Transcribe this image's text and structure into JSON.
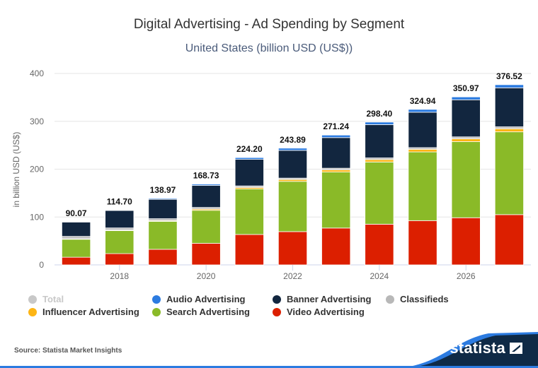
{
  "title": "Digital Advertising - Ad Spending by Segment",
  "subtitle": "United States (billion USD (US$))",
  "source": "Source: Statista Market Insights",
  "brand": "statista",
  "chart_data": {
    "type": "bar",
    "stacked": true,
    "title": "Digital Advertising - Ad Spending by Segment",
    "subtitle": "United States (billion USD (US$))",
    "xlabel": "",
    "ylabel": "in billion USD (US$)",
    "ylim": [
      0,
      400
    ],
    "yticks": [
      0,
      100,
      200,
      300,
      400
    ],
    "grid": true,
    "legend_position": "bottom",
    "categories": [
      "2017",
      "2018",
      "2019",
      "2020",
      "2021",
      "2022",
      "2023",
      "2024",
      "2025",
      "2026",
      "2027"
    ],
    "xtick_labels": [
      "",
      "2018",
      "",
      "2020",
      "",
      "2022",
      "",
      "2024",
      "",
      "2026",
      ""
    ],
    "totals": [
      90.07,
      114.7,
      138.97,
      168.73,
      224.2,
      243.89,
      271.24,
      298.4,
      324.94,
      350.97,
      376.52
    ],
    "total_labels": [
      "90.07",
      "114.70",
      "138.97",
      "168.73",
      "224.20",
      "243.89",
      "271.24",
      "298.40",
      "324.94",
      "350.97",
      "376.52"
    ],
    "series": [
      {
        "name": "Video Advertising",
        "color": "#dc1f00",
        "values": [
          16.0,
          23.5,
          32.5,
          45.0,
          63.5,
          69.5,
          77.0,
          85.0,
          92.5,
          98.5,
          105.0
        ]
      },
      {
        "name": "Search Advertising",
        "color": "#8aba28",
        "values": [
          37.5,
          48.0,
          58.5,
          69.0,
          95.0,
          105.0,
          117.0,
          130.0,
          143.5,
          159.0,
          173.0
        ]
      },
      {
        "name": "Influencer Advertising",
        "color": "#fdb515",
        "values": [
          1.0,
          1.2,
          1.5,
          2.5,
          3.0,
          3.8,
          4.5,
          5.0,
          5.5,
          6.0,
          6.5
        ]
      },
      {
        "name": "Classifieds",
        "color": "#c0c0c0",
        "values": [
          5.0,
          4.5,
          4.0,
          3.5,
          3.5,
          3.0,
          3.5,
          3.5,
          3.5,
          4.0,
          4.0
        ]
      },
      {
        "name": "Banner Advertising",
        "color": "#12263f",
        "values": [
          30.0,
          36.5,
          40.5,
          46.0,
          55.5,
          58.0,
          64.0,
          69.5,
          74.0,
          77.5,
          81.5
        ]
      },
      {
        "name": "Audio Advertising",
        "color": "#2c7be0",
        "values": [
          0.57,
          1.0,
          1.97,
          2.73,
          3.7,
          4.59,
          5.24,
          5.4,
          5.94,
          5.97,
          6.52
        ]
      }
    ]
  },
  "legend": [
    {
      "label": "Total",
      "color": "#c8c8c8",
      "inactive": true
    },
    {
      "label": "Audio Advertising",
      "color": "#2c7be0"
    },
    {
      "label": "Banner Advertising",
      "color": "#12263f"
    },
    {
      "label": "Classifieds",
      "color": "#b8b8b8"
    },
    {
      "label": "Influencer Advertising",
      "color": "#fdb515"
    },
    {
      "label": "Search Advertising",
      "color": "#8aba28"
    },
    {
      "label": "Video Advertising",
      "color": "#dc1f00"
    }
  ]
}
